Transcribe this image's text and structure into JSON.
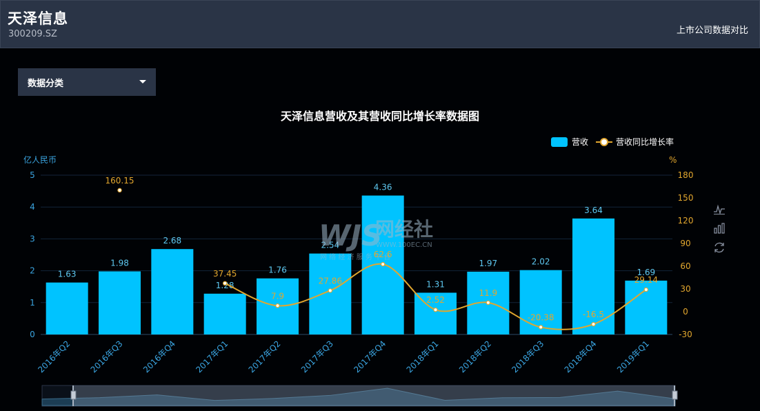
{
  "header": {
    "company_name": "天泽信息",
    "stock_code": "300209.SZ",
    "compare_link": "上市公司数据对比"
  },
  "filter": {
    "dropdown_label": "数据分类"
  },
  "watermark": {
    "logo_text": "WJS",
    "brand": "网经社",
    "url": "WWW.100EC.CN",
    "tagline": "网 络 经 济 服 务 平 台"
  },
  "toolbox": [
    "line-chart-icon",
    "bar-chart-icon",
    "restore-icon"
  ],
  "colors": {
    "bar": "#00c3ff",
    "line": "#e2a72e",
    "left_axis_text": "#3aa4e0",
    "right_axis_text": "#e2a72e"
  },
  "chart_data": {
    "type": "bar",
    "title": "天泽信息营收及其营收同比增长率数据图",
    "categories": [
      "2016年Q2",
      "2016年Q3",
      "2016年Q4",
      "2017年Q1",
      "2017年Q2",
      "2017年Q3",
      "2017年Q4",
      "2018年Q1",
      "2018年Q2",
      "2018年Q3",
      "2018年Q4",
      "2019年Q1"
    ],
    "series": [
      {
        "name": "营收",
        "type": "bar",
        "axis": "left",
        "values": [
          1.63,
          1.98,
          2.68,
          1.28,
          1.76,
          2.54,
          4.36,
          1.31,
          1.97,
          2.02,
          3.64,
          1.69
        ]
      },
      {
        "name": "营收同比增长率",
        "type": "line",
        "axis": "right",
        "values": [
          null,
          160.15,
          null,
          37.45,
          7.9,
          27.86,
          62.6,
          2.52,
          11.9,
          -20.38,
          -16.5,
          29.14
        ]
      }
    ],
    "left_axis": {
      "label": "亿人民币",
      "ylim": [
        0,
        5
      ],
      "ticks": [
        0,
        1,
        2,
        3,
        4,
        5
      ]
    },
    "right_axis": {
      "label": "%",
      "ylim": [
        -30,
        180
      ],
      "ticks": [
        -30,
        0,
        30,
        60,
        90,
        120,
        150,
        180
      ]
    },
    "legend_position": "top-right",
    "grid": true
  }
}
